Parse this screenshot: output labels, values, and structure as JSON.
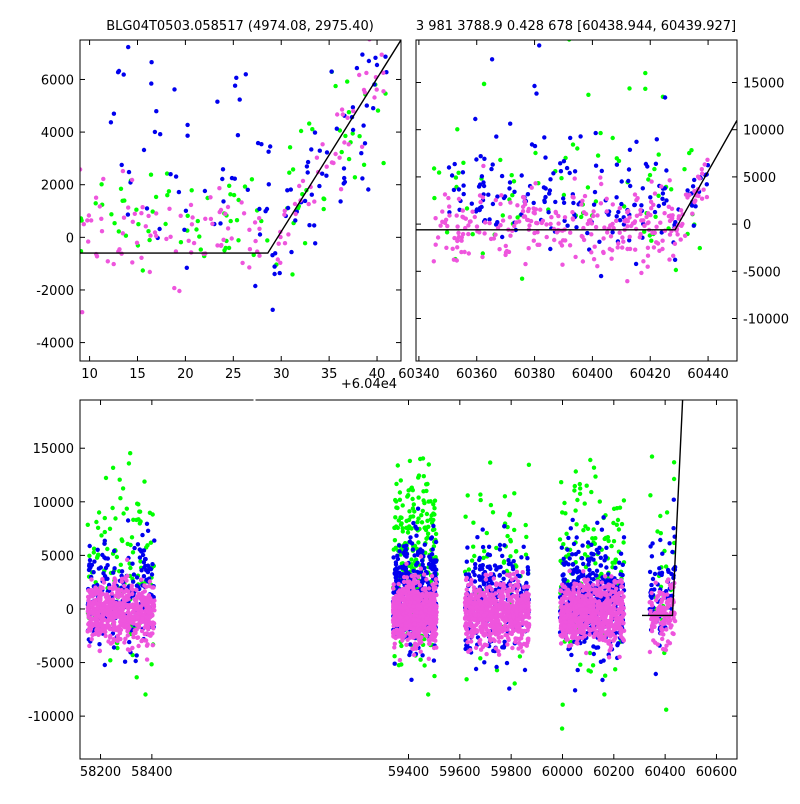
{
  "figure": {
    "title_left": "BLG04T0503.058517 (4974.08, 2975.40)",
    "title_right": "3 981 3788.9 0.428 678 [60438.944, 60439.927]",
    "offset_label": "+6.04e4"
  },
  "colors": {
    "green": "#00ff00",
    "blue": "#0000ee",
    "pink": "#ee55dd",
    "model": "#000000"
  },
  "chart_data": [
    {
      "type": "scatter",
      "name": "zoom-left",
      "xlim": [
        9,
        42.5
      ],
      "ylim": [
        -4700,
        7500
      ],
      "xticks": [
        10,
        15,
        20,
        25,
        30,
        35,
        40
      ],
      "yticks": [
        -4000,
        -2000,
        0,
        2000,
        4000,
        6000
      ],
      "model": [
        [
          9,
          -600
        ],
        [
          28.6,
          -600
        ],
        [
          42.5,
          7500
        ]
      ],
      "series": [
        {
          "color": "green",
          "clusters": [
            {
              "xr": [
                9,
                28
              ],
              "yr": [
                -500,
                2500
              ],
              "n": 55
            },
            {
              "xr": [
                28,
                41
              ],
              "yr": [
                0,
                7000
              ],
              "n": 40
            }
          ]
        },
        {
          "color": "blue",
          "clusters": [
            {
              "xr": [
                12,
                29
              ],
              "yr": [
                -500,
                6500
              ],
              "n": 55
            },
            {
              "xr": [
                29,
                41
              ],
              "yr": [
                1000,
                7000
              ],
              "n": 60
            }
          ]
        },
        {
          "color": "pink",
          "clusters": [
            {
              "xr": [
                9,
                29
              ],
              "yr": [
                -1200,
                1600
              ],
              "n": 80
            },
            {
              "xr": [
                29,
                41
              ],
              "yr": [
                1000,
                6500
              ],
              "n": 45
            }
          ]
        }
      ]
    },
    {
      "type": "scatter",
      "name": "zoom-right",
      "xlim": [
        60339,
        60450
      ],
      "ylim": [
        -14500,
        19500
      ],
      "xticks": [
        60340,
        60360,
        60380,
        60400,
        60420,
        60440
      ],
      "yticks": [
        -10000,
        -5000,
        0,
        5000,
        10000,
        15000
      ],
      "model": [
        [
          60339,
          -600
        ],
        [
          60428.6,
          -600
        ],
        [
          60450,
          11000
        ]
      ],
      "series": [
        {
          "color": "green",
          "clusters": [
            {
              "xr": [
                60345,
                60440
              ],
              "yr": [
                -3000,
                8000
              ],
              "n": 70
            },
            {
              "xr": [
                60360,
                60430
              ],
              "yr": [
                8000,
                19000
              ],
              "n": 10
            }
          ]
        },
        {
          "color": "blue",
          "clusters": [
            {
              "xr": [
                60350,
                60440
              ],
              "yr": [
                -2000,
                7000
              ],
              "n": 170
            },
            {
              "xr": [
                60360,
                60430
              ],
              "yr": [
                7000,
                19000
              ],
              "n": 12
            }
          ]
        },
        {
          "color": "pink",
          "clusters": [
            {
              "xr": [
                60345,
                60440
              ],
              "yr": [
                -3500,
                3000
              ],
              "n": 300
            }
          ]
        }
      ]
    },
    {
      "type": "scatter",
      "name": "full-light-curve",
      "xlim": [
        58120,
        60680
      ],
      "ylim": [
        -14000,
        19500
      ],
      "xticks": [
        58200,
        58400,
        59400,
        59600,
        59800,
        60000,
        60200,
        60400,
        60600
      ],
      "yticks": [
        -10000,
        -5000,
        0,
        5000,
        10000,
        15000
      ],
      "model": [
        [
          60310,
          -600
        ],
        [
          60428.6,
          -600
        ],
        [
          60468,
          19500
        ]
      ],
      "seasons": [
        [
          58150,
          58410
        ],
        [
          59340,
          59510
        ],
        [
          59620,
          59870
        ],
        [
          59990,
          60240
        ],
        [
          60340,
          60440
        ]
      ],
      "series": [
        {
          "color": "green",
          "n_per_season": [
            120,
            260,
            70,
            150,
            25
          ]
        },
        {
          "color": "blue",
          "n_per_season": [
            220,
            360,
            260,
            360,
            70
          ]
        },
        {
          "color": "pink",
          "n_per_season": [
            600,
            750,
            700,
            700,
            130
          ]
        }
      ]
    }
  ]
}
